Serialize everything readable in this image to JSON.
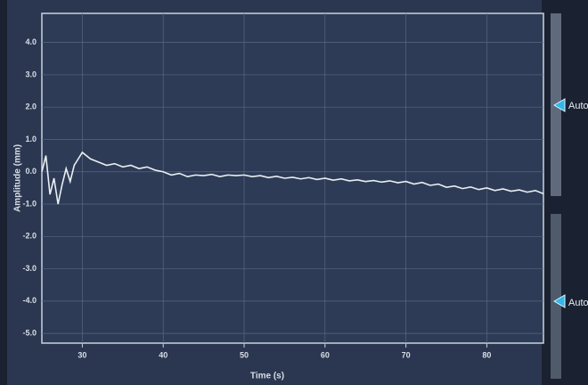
{
  "chart_data": {
    "type": "line",
    "ylabel": "Amplitude (mm)",
    "xlabel": "Time (s)",
    "x": [
      25.0,
      25.5,
      26.0,
      26.5,
      27.0,
      27.5,
      28.0,
      28.5,
      29.0,
      29.5,
      30,
      31,
      32,
      33,
      34,
      35,
      36,
      37,
      38,
      39,
      40,
      41,
      42,
      43,
      44,
      45,
      46,
      47,
      48,
      49,
      50,
      51,
      52,
      53,
      54,
      55,
      56,
      57,
      58,
      59,
      60,
      61,
      62,
      63,
      64,
      65,
      66,
      67,
      68,
      69,
      70,
      71,
      72,
      73,
      74,
      75,
      76,
      77,
      78,
      79,
      80,
      81,
      82,
      83,
      84,
      85,
      86,
      87
    ],
    "series": [
      {
        "color": "#e8eef2",
        "values": [
          0.0,
          0.5,
          -0.7,
          -0.2,
          -1.0,
          -0.4,
          0.1,
          -0.3,
          0.2,
          0.4,
          0.6,
          0.4,
          0.3,
          0.2,
          0.25,
          0.15,
          0.2,
          0.1,
          0.15,
          0.05,
          0.0,
          -0.1,
          -0.05,
          -0.15,
          -0.1,
          -0.12,
          -0.08,
          -0.15,
          -0.1,
          -0.12,
          -0.1,
          -0.15,
          -0.12,
          -0.18,
          -0.14,
          -0.2,
          -0.17,
          -0.22,
          -0.18,
          -0.24,
          -0.2,
          -0.26,
          -0.22,
          -0.28,
          -0.25,
          -0.3,
          -0.27,
          -0.32,
          -0.28,
          -0.34,
          -0.3,
          -0.38,
          -0.33,
          -0.42,
          -0.38,
          -0.48,
          -0.44,
          -0.52,
          -0.47,
          -0.55,
          -0.5,
          -0.58,
          -0.53,
          -0.6,
          -0.56,
          -0.63,
          -0.58,
          -0.68
        ]
      }
    ],
    "xlim": [
      25,
      87
    ],
    "ylim": [
      -5.3,
      4.9
    ],
    "xticks": [
      30,
      40,
      50,
      60,
      70,
      80
    ],
    "yticks": [
      {
        "value": 4,
        "label": "4.0"
      },
      {
        "value": 3,
        "label": "3.0"
      },
      {
        "value": 2,
        "label": "2.0"
      },
      {
        "value": 1,
        "label": "1.0"
      },
      {
        "value": 0,
        "label": "0.0"
      },
      {
        "value": -1,
        "label": "-1.0"
      },
      {
        "value": -2,
        "label": "-2.0"
      },
      {
        "value": -3,
        "label": "-3.0"
      },
      {
        "value": -4,
        "label": "-4.0"
      },
      {
        "value": -5,
        "label": "-5.0"
      }
    ],
    "grid": true
  },
  "scale_buttons": [
    "Auto",
    "Auto"
  ]
}
